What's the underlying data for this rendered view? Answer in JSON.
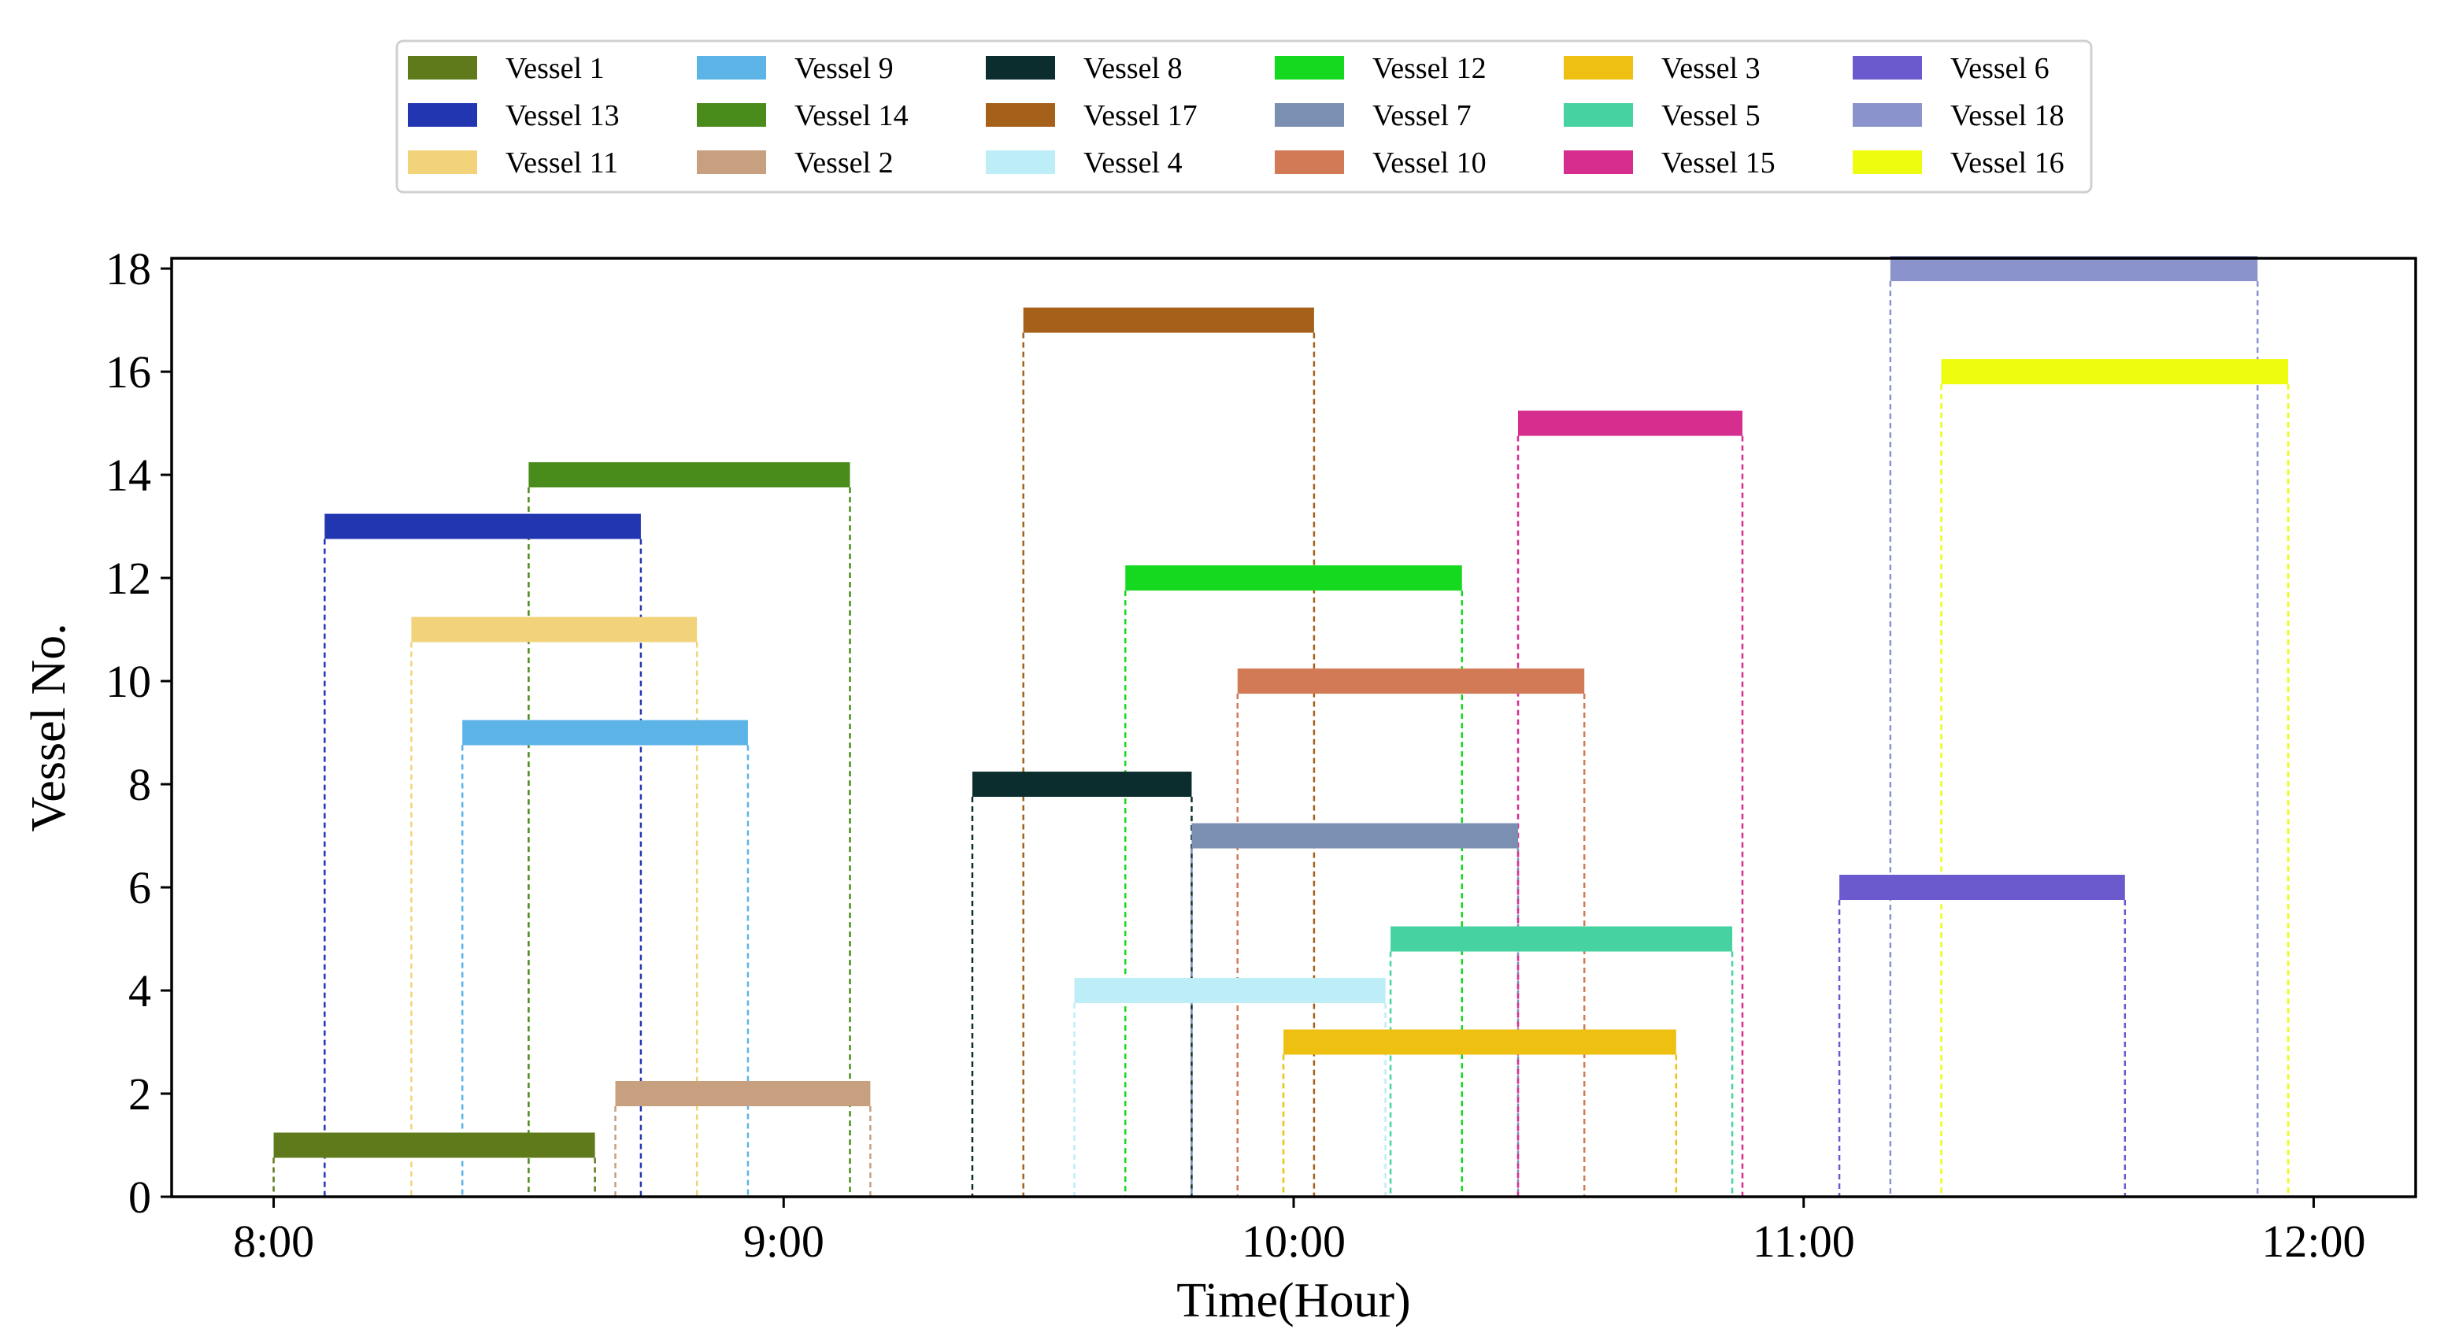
{
  "chart_data": {
    "type": "gantt",
    "xlabel": "Time(Hour)",
    "ylabel": "Vessel No.",
    "x_unit": "hours",
    "xlim": [
      7.8,
      12.2
    ],
    "ylim": [
      0,
      18.2
    ],
    "x_ticks": [
      {
        "value": 8,
        "label": "8:00"
      },
      {
        "value": 9,
        "label": "9:00"
      },
      {
        "value": 10,
        "label": "10:00"
      },
      {
        "value": 11,
        "label": "11:00"
      },
      {
        "value": 12,
        "label": "12:00"
      }
    ],
    "y_ticks": [
      0,
      2,
      4,
      6,
      8,
      10,
      12,
      14,
      16,
      18
    ],
    "legend_position": "top-center",
    "legend_columns": 6,
    "grid": false,
    "series": [
      {
        "name": "Vessel 1",
        "vessel": 1,
        "start": 8.0,
        "end": 8.63,
        "color": "#5e7a1a"
      },
      {
        "name": "Vessel 9",
        "vessel": 9,
        "start": 8.37,
        "end": 8.93,
        "color": "#5cb4e6"
      },
      {
        "name": "Vessel 8",
        "vessel": 8,
        "start": 9.37,
        "end": 9.8,
        "color": "#0b2d2d"
      },
      {
        "name": "Vessel 12",
        "vessel": 12,
        "start": 9.67,
        "end": 10.33,
        "color": "#14d91f"
      },
      {
        "name": "Vessel 3",
        "vessel": 3,
        "start": 9.98,
        "end": 10.75,
        "color": "#eec012"
      },
      {
        "name": "Vessel 6",
        "vessel": 6,
        "start": 11.07,
        "end": 11.63,
        "color": "#6a5acd"
      },
      {
        "name": "Vessel 13",
        "vessel": 13,
        "start": 8.1,
        "end": 8.72,
        "color": "#2336b2"
      },
      {
        "name": "Vessel 14",
        "vessel": 14,
        "start": 8.5,
        "end": 9.13,
        "color": "#4a8c1c"
      },
      {
        "name": "Vessel 17",
        "vessel": 17,
        "start": 9.47,
        "end": 10.04,
        "color": "#a5601a"
      },
      {
        "name": "Vessel 7",
        "vessel": 7,
        "start": 9.8,
        "end": 10.44,
        "color": "#7b8fb3"
      },
      {
        "name": "Vessel 5",
        "vessel": 5,
        "start": 10.19,
        "end": 10.86,
        "color": "#47d3a1"
      },
      {
        "name": "Vessel 18",
        "vessel": 18,
        "start": 11.17,
        "end": 11.89,
        "color": "#8a93cb"
      },
      {
        "name": "Vessel 11",
        "vessel": 11,
        "start": 8.27,
        "end": 8.83,
        "color": "#f2d37a"
      },
      {
        "name": "Vessel 2",
        "vessel": 2,
        "start": 8.67,
        "end": 9.17,
        "color": "#c7a07f"
      },
      {
        "name": "Vessel 4",
        "vessel": 4,
        "start": 9.57,
        "end": 10.18,
        "color": "#bdeef7"
      },
      {
        "name": "Vessel 10",
        "vessel": 10,
        "start": 9.89,
        "end": 10.57,
        "color": "#d17a55"
      },
      {
        "name": "Vessel 15",
        "vessel": 15,
        "start": 10.44,
        "end": 10.88,
        "color": "#d62e8e"
      },
      {
        "name": "Vessel 16",
        "vessel": 16,
        "start": 11.27,
        "end": 11.95,
        "color": "#eefc10"
      }
    ]
  }
}
